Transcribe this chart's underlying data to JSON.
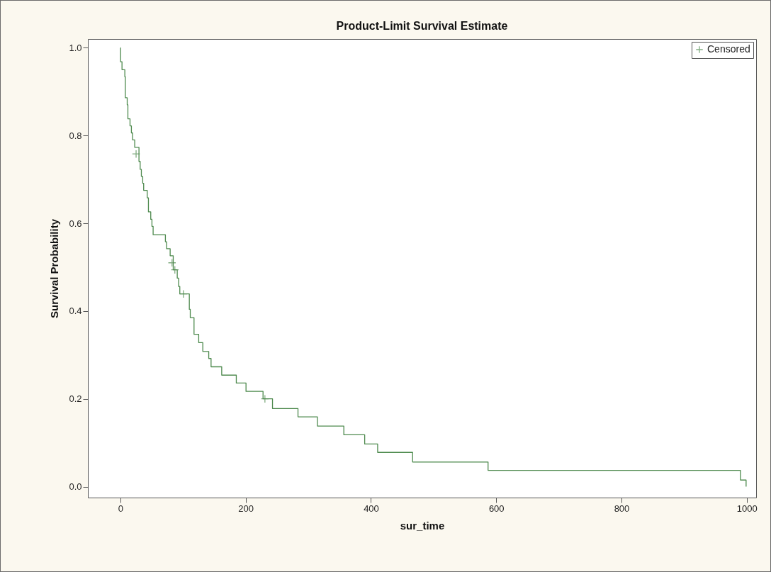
{
  "chart_data": {
    "type": "step",
    "title": "Product-Limit Survival Estimate",
    "xlabel": "sur_time",
    "ylabel": "Survival Probability",
    "xlim": [
      -52,
      1015
    ],
    "ylim": [
      -0.025,
      1.02
    ],
    "xticks": [
      0,
      200,
      400,
      600,
      800,
      {
        "value": 1000,
        "label": "1000"
      }
    ],
    "yticks": [
      {
        "value": 0,
        "label": "0.0"
      },
      {
        "value": 0.2,
        "label": "0.2"
      },
      {
        "value": 0.4,
        "label": "0.4"
      },
      {
        "value": 0.6,
        "label": "0.6"
      },
      {
        "value": 0.8,
        "label": "0.8"
      },
      {
        "value": 1,
        "label": "1.0"
      }
    ],
    "grid": false,
    "legend": "top right",
    "series": [
      {
        "color": "#4e8a4e",
        "x": [
          0,
          0.2,
          2.5,
          7,
          7.8,
          10.8,
          11.9,
          15.3,
          17.5,
          19.4,
          22.8,
          29.6,
          31.5,
          33.4,
          35.6,
          37.1,
          42.8,
          44.7,
          48.4,
          50.3,
          52.2,
          71.8,
          73.7,
          79.4,
          84.3,
          90.7,
          92.9,
          94.8,
          110,
          111.5,
          117.5,
          125,
          131.5,
          141,
          144.7,
          161.7,
          185,
          200.5,
          227.7,
          242.8,
          283.5,
          314.5,
          356.7,
          390,
          410.7,
          466.5,
          587,
          990,
          999
        ],
        "values": [
          1,
          0.968,
          0.95,
          0.934,
          0.886,
          0.87,
          0.838,
          0.822,
          0.806,
          0.79,
          0.773,
          0.741,
          0.723,
          0.707,
          0.691,
          0.675,
          0.658,
          0.626,
          0.609,
          0.593,
          0.574,
          0.558,
          0.542,
          0.526,
          0.494,
          0.475,
          0.456,
          0.439,
          0.404,
          0.385,
          0.347,
          0.328,
          0.308,
          0.292,
          0.273,
          0.254,
          0.236,
          0.217,
          0.2,
          0.178,
          0.159,
          0.138,
          0.118,
          0.097,
          0.078,
          0.056,
          0.037,
          0.015,
          0
        ]
      },
      {
        "type": "scatter",
        "name": "Censored",
        "color": "#4e8a4e",
        "marker": "cross",
        "x": [
          25,
          82.4,
          86.9,
          100.5,
          230.7
        ],
        "values": [
          0.758,
          0.51,
          0.494,
          0.439,
          0.2
        ]
      }
    ]
  }
}
